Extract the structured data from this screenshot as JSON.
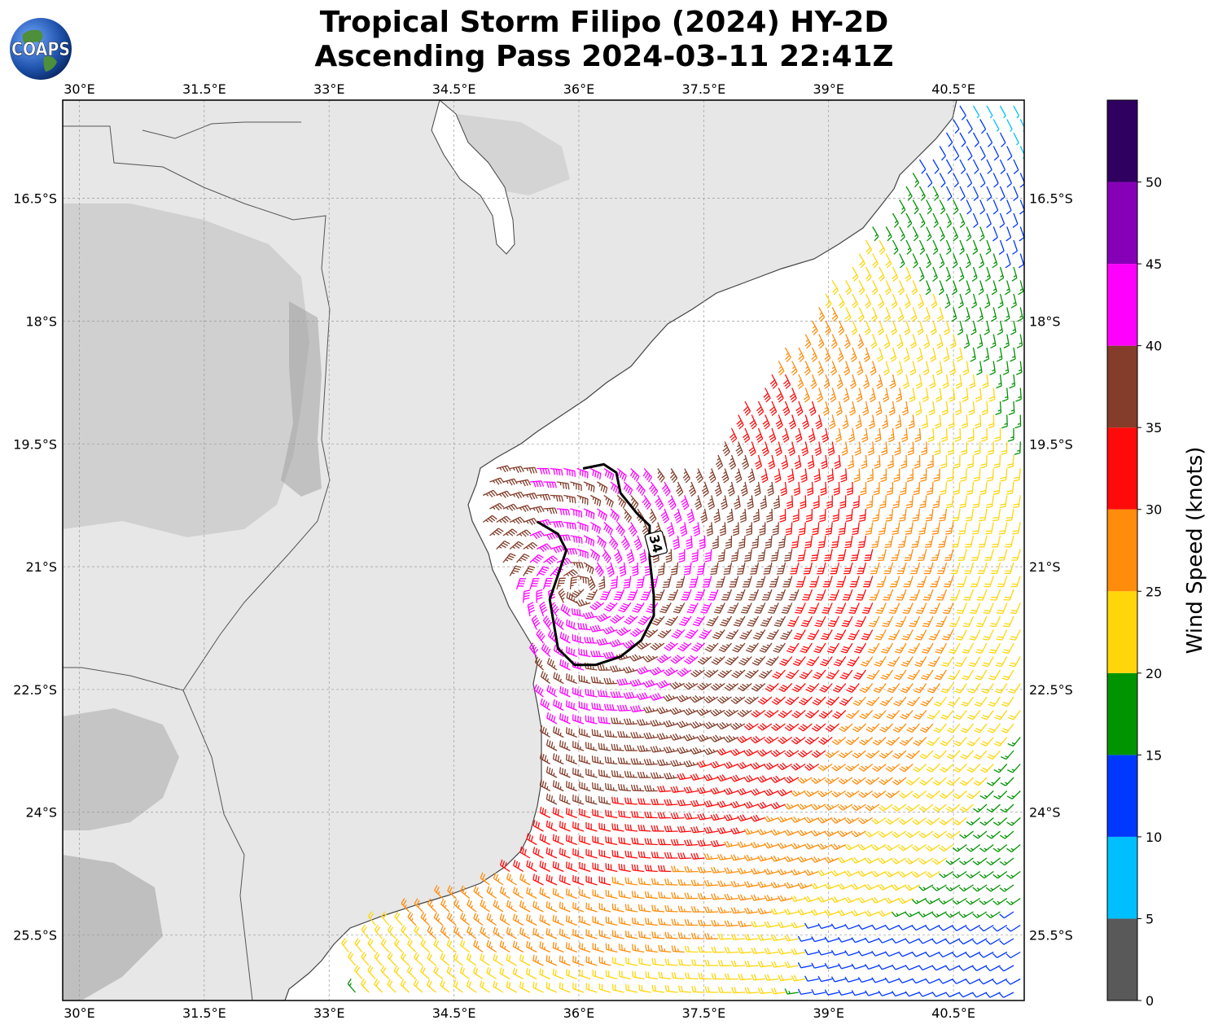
{
  "title": {
    "line1": "Tropical Storm Filipo (2024) HY-2D",
    "line2": "Ascending Pass 2024-03-11 22:41Z"
  },
  "logo": {
    "text": "COAPS",
    "icon": "globe-logo-icon"
  },
  "map": {
    "lon_range": [
      29.8,
      41.35
    ],
    "lat_range": [
      -26.3,
      -15.3
    ],
    "lon_ticks": [
      {
        "value": 30.0,
        "label": "30°E"
      },
      {
        "value": 31.5,
        "label": "31.5°E"
      },
      {
        "value": 33.0,
        "label": "33°E"
      },
      {
        "value": 34.5,
        "label": "34.5°E"
      },
      {
        "value": 36.0,
        "label": "36°E"
      },
      {
        "value": 37.5,
        "label": "37.5°E"
      },
      {
        "value": 39.0,
        "label": "39°E"
      },
      {
        "value": 40.5,
        "label": "40.5°E"
      }
    ],
    "lat_ticks": [
      {
        "value": -16.5,
        "label": "16.5°S"
      },
      {
        "value": -18.0,
        "label": "18°S"
      },
      {
        "value": -19.5,
        "label": "19.5°S"
      },
      {
        "value": -21.0,
        "label": "21°S"
      },
      {
        "value": -22.5,
        "label": "22.5°S"
      },
      {
        "value": -24.0,
        "label": "24°S"
      },
      {
        "value": -25.5,
        "label": "25.5°S"
      }
    ],
    "grid": true,
    "land_color": "#e6e6e6",
    "ocean_color": "#ffffff",
    "storm_center": {
      "lon": 36.0,
      "lat": -21.25
    },
    "contour": {
      "value_label": "34",
      "points": [
        [
          36.05,
          -19.8
        ],
        [
          36.3,
          -19.75
        ],
        [
          36.45,
          -19.85
        ],
        [
          36.5,
          -20.1
        ],
        [
          36.7,
          -20.35
        ],
        [
          36.85,
          -20.5
        ],
        [
          36.85,
          -20.9
        ],
        [
          36.9,
          -21.35
        ],
        [
          36.9,
          -21.6
        ],
        [
          36.75,
          -21.9
        ],
        [
          36.5,
          -22.1
        ],
        [
          36.2,
          -22.2
        ],
        [
          35.95,
          -22.2
        ],
        [
          35.75,
          -22.0
        ],
        [
          35.7,
          -21.7
        ],
        [
          35.65,
          -21.4
        ],
        [
          35.75,
          -21.1
        ],
        [
          35.85,
          -20.8
        ],
        [
          35.75,
          -20.6
        ],
        [
          35.5,
          -20.45
        ]
      ]
    }
  },
  "colorbar": {
    "label": "Wind Speed (knots)",
    "min": 0,
    "max": 55,
    "bins": [
      {
        "from": 0,
        "to": 5,
        "color": "#595959"
      },
      {
        "from": 5,
        "to": 10,
        "color": "#00bfff"
      },
      {
        "from": 10,
        "to": 15,
        "color": "#0038ff"
      },
      {
        "from": 15,
        "to": 20,
        "color": "#009400"
      },
      {
        "from": 20,
        "to": 25,
        "color": "#ffd60a"
      },
      {
        "from": 25,
        "to": 30,
        "color": "#ff8c0a"
      },
      {
        "from": 30,
        "to": 35,
        "color": "#ff0a0a"
      },
      {
        "from": 35,
        "to": 40,
        "color": "#833d2a"
      },
      {
        "from": 40,
        "to": 45,
        "color": "#ff00ff"
      },
      {
        "from": 45,
        "to": 50,
        "color": "#8600b8"
      },
      {
        "from": 50,
        "to": 55,
        "color": "#300060"
      }
    ],
    "ticks": [
      {
        "value": 0,
        "label": "0"
      },
      {
        "value": 5,
        "label": "5"
      },
      {
        "value": 10,
        "label": "10"
      },
      {
        "value": 15,
        "label": "15"
      },
      {
        "value": 20,
        "label": "20"
      },
      {
        "value": 25,
        "label": "25"
      },
      {
        "value": 30,
        "label": "30"
      },
      {
        "value": 35,
        "label": "35"
      },
      {
        "value": 40,
        "label": "40"
      },
      {
        "value": 45,
        "label": "45"
      },
      {
        "value": 50,
        "label": "50"
      }
    ]
  }
}
